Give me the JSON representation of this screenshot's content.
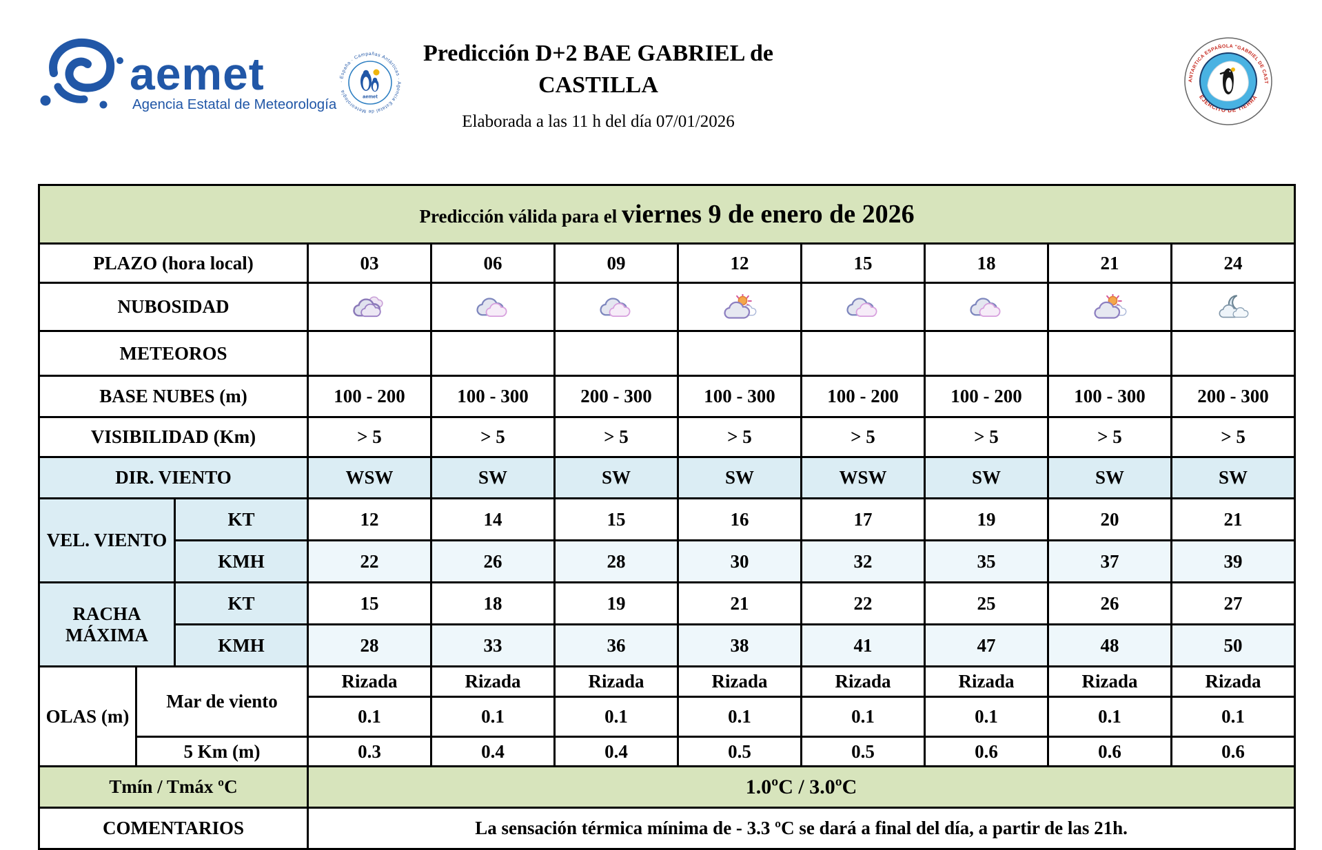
{
  "header": {
    "title": "Predicción D+2 BAE GABRIEL de CASTILLA",
    "issued": "Elaborada a las 11 h del día 07/01/2026",
    "aemet_wordmark": "aemet",
    "aemet_tagline": "Agencia Estatal de Meteorología",
    "aemet_badge_ring": "· España · Campañas Antárticas · Agencia Estatal de Meteorología",
    "aemet_badge_center": "aemet",
    "base_badge_top": "BASE ANTARTICA ESPAÑOLA \"GABRIEL DE CASTILLA\"",
    "base_badge_bottom": "EJERCITO DE TIERRA"
  },
  "colors": {
    "header_green": "#d7e4bc",
    "wind_blue": "#dbedf4",
    "wind_blue_light": "#eef7fb",
    "logo_blue": "#2157a7",
    "badge_red": "#c6281e"
  },
  "forecast": {
    "valid_prefix": "Predicción válida para el ",
    "valid_date": "viernes 9 de enero de 2026",
    "plazo": {
      "label": "PLAZO (hora local)",
      "hours": [
        "03",
        "06",
        "09",
        "12",
        "15",
        "18",
        "21",
        "24"
      ]
    },
    "nubosidad": {
      "label": "NUBOSIDAD",
      "icons": [
        "muy-nuboso",
        "nuboso",
        "nuboso",
        "nubes-sol",
        "nuboso",
        "nuboso",
        "nubes-sol",
        "nubes-luna"
      ]
    },
    "meteoros": {
      "label": "METEOROS"
    },
    "base_nubes": {
      "label": "BASE NUBES (m)",
      "values": [
        "100 - 200",
        "100 - 300",
        "200 - 300",
        "100 - 300",
        "100 - 200",
        "100 - 200",
        "100 - 300",
        "200 - 300"
      ]
    },
    "visibilidad": {
      "label": "VISIBILIDAD (Km)",
      "values": [
        "> 5",
        "> 5",
        "> 5",
        "> 5",
        "> 5",
        "> 5",
        "> 5",
        "> 5"
      ]
    },
    "dir_viento": {
      "label": "DIR. VIENTO",
      "values": [
        "WSW",
        "SW",
        "SW",
        "SW",
        "WSW",
        "SW",
        "SW",
        "SW"
      ]
    },
    "vel_viento": {
      "label": "VEL. VIENTO",
      "kt_label": "KT",
      "kmh_label": "KMH",
      "kt": [
        "12",
        "14",
        "15",
        "16",
        "17",
        "19",
        "20",
        "21"
      ],
      "kmh": [
        "22",
        "26",
        "28",
        "30",
        "32",
        "35",
        "37",
        "39"
      ]
    },
    "racha": {
      "label": "RACHA MÁXIMA",
      "kt_label": "KT",
      "kmh_label": "KMH",
      "kt": [
        "15",
        "18",
        "19",
        "21",
        "22",
        "25",
        "26",
        "27"
      ],
      "kmh": [
        "28",
        "33",
        "36",
        "38",
        "41",
        "47",
        "48",
        "50"
      ]
    },
    "olas": {
      "label": "OLAS (m)",
      "mar_label": "Mar de viento",
      "estado": [
        "Rizada",
        "Rizada",
        "Rizada",
        "Rizada",
        "Rizada",
        "Rizada",
        "Rizada",
        "Rizada"
      ],
      "altura": [
        "0.1",
        "0.1",
        "0.1",
        "0.1",
        "0.1",
        "0.1",
        "0.1",
        "0.1"
      ],
      "km5_label": "5 Km (m)",
      "km5": [
        "0.3",
        "0.4",
        "0.4",
        "0.5",
        "0.5",
        "0.6",
        "0.6",
        "0.6"
      ]
    },
    "temp": {
      "label": "Tmín / Tmáx ºC",
      "value": "1.0ºC / 3.0ºC"
    },
    "comentarios": {
      "label": "COMENTARIOS",
      "text": "La sensación térmica mínima de - 3.3 ºC se dará a final del día, a partir de las 21h."
    }
  }
}
